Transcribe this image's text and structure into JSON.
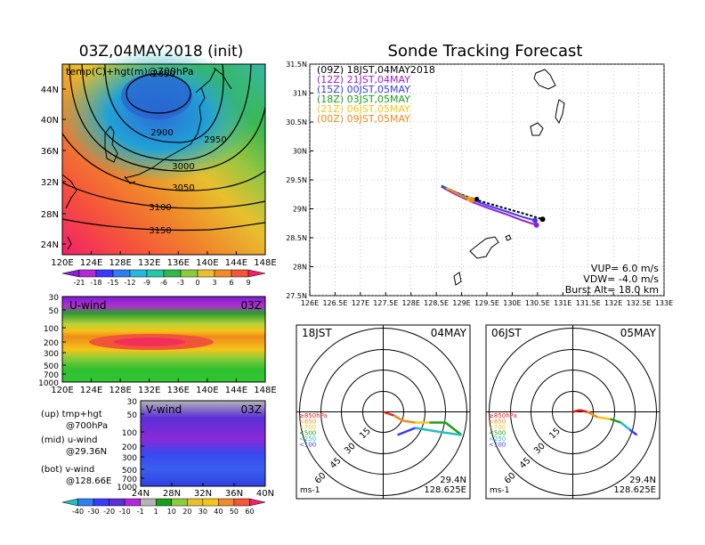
{
  "title": "Sonde Tracking Forecast",
  "init": {
    "title": "03Z,04MAY2018 (init)",
    "overlay": "temp(C)+hgt(m)@700hPa",
    "lat_ticks": [
      "44N",
      "40N",
      "36N",
      "32N",
      "28N",
      "24N"
    ],
    "lon_ticks": [
      "120E",
      "124E",
      "128E",
      "132E",
      "136E",
      "140E",
      "144E",
      "148E"
    ],
    "contours": [
      "2850",
      "2900",
      "2950",
      "3000",
      "3050",
      "3100",
      "3150"
    ],
    "colorbar": [
      "-21",
      "-18",
      "-15",
      "-12",
      "-9",
      "-6",
      "-3",
      "0",
      "3",
      "6",
      "9"
    ]
  },
  "uwind": {
    "title": "U-wind",
    "time": "03Z",
    "levels": [
      "30",
      "50",
      "100",
      "200",
      "300",
      "500",
      "700",
      "1000"
    ],
    "lon_ticks": [
      "120E",
      "124E",
      "128E",
      "132E",
      "136E",
      "140E",
      "144E",
      "148E"
    ]
  },
  "vwind": {
    "title": "V-wind",
    "time": "03Z",
    "levels": [
      "30",
      "50",
      "100",
      "200",
      "300",
      "500",
      "700",
      "1000"
    ],
    "lat_ticks": [
      "24N",
      "28N",
      "32N",
      "36N",
      "40N"
    ]
  },
  "legend_notes": [
    {
      "a": "(up) tmp+hgt",
      "b": "@700hPa"
    },
    {
      "a": "(mid) u-wind",
      "b": "@29.36N"
    },
    {
      "a": "(bot) v-wind",
      "b": "@128.66E"
    }
  ],
  "wind_colorbar": [
    "-40",
    "-30",
    "-20",
    "-10",
    "-1",
    "1",
    "10",
    "20",
    "30",
    "40",
    "50",
    "60"
  ],
  "track_legend": [
    {
      "label": "(09Z)  18JST,04MAY2018",
      "color": "#000000"
    },
    {
      "label": "(12Z)  21JST,04MAY",
      "color": "#9b1fd2"
    },
    {
      "label": "(15Z)  00JST,05MAY",
      "color": "#3a38ff"
    },
    {
      "label": "(18Z)  03JST,05MAY",
      "color": "#1a9e1a"
    },
    {
      "label": "(21Z)  06JST,05MAY",
      "color": "#f5c518"
    },
    {
      "label": "(00Z)  09JST,05MAY",
      "color": "#f08a1c"
    }
  ],
  "params": {
    "vup": "VUP=  6.0  m/s",
    "vdw": "VDW=  -4.0  m/s",
    "burst": "Burst Alt=  18.0  km"
  },
  "hodo": [
    {
      "left": "18JST",
      "right": "04MAY",
      "lat": "29.4N",
      "lon": "128.625E",
      "units": "ms-1"
    },
    {
      "left": "06JST",
      "right": "05MAY",
      "lat": "29.4N",
      "lon": "128.625E",
      "units": "ms-1"
    }
  ],
  "hodo_rings": [
    "15",
    "30",
    "45",
    "60"
  ],
  "pressure_legend": [
    {
      "label": "≥850hPa",
      "color": "#e02020"
    },
    {
      "label": "<850",
      "color": "#f08a1c"
    },
    {
      "label": "<700",
      "color": "#f5c518"
    },
    {
      "label": "<500",
      "color": "#1a9e1a"
    },
    {
      "label": "<250",
      "color": "#20c0c0"
    },
    {
      "label": "<100",
      "color": "#3a38ff"
    }
  ],
  "chart_data": {
    "type": "line",
    "xlabel": "",
    "ylabel": "",
    "xlim": [
      126,
      133
    ],
    "ylim": [
      27.5,
      31.5
    ],
    "x_ticks": [
      "126E",
      "126.5E",
      "127E",
      "127.5E",
      "128E",
      "128.5E",
      "129E",
      "129.5E",
      "130E",
      "130.5E",
      "131E",
      "131.5E",
      "132E",
      "132.5E",
      "133E"
    ],
    "y_ticks": [
      "27.5N",
      "28N",
      "28.5N",
      "29N",
      "29.5N",
      "30N",
      "30.5N",
      "31N",
      "31.5N"
    ],
    "series": [
      {
        "name": "(09Z)  18JST,04MAY2018",
        "color": "#000000",
        "dashed": true,
        "x": [
          128.6,
          128.9,
          129.2,
          129.5,
          129.9,
          130.3,
          130.6
        ],
        "y": [
          29.4,
          29.28,
          29.18,
          29.1,
          29.0,
          28.9,
          28.82
        ]
      },
      {
        "name": "(12Z)  21JST,04MAY",
        "color": "#9b1fd2",
        "dashed": false,
        "x": [
          128.6,
          128.9,
          129.2,
          129.5,
          129.9,
          130.2,
          130.48
        ],
        "y": [
          29.38,
          29.24,
          29.12,
          29.02,
          28.9,
          28.8,
          28.72
        ]
      },
      {
        "name": "(15Z)  00JST,05MAY",
        "color": "#3a38ff",
        "dashed": false,
        "x": [
          128.6,
          128.9,
          129.2,
          129.5,
          129.9,
          130.2,
          130.45
        ],
        "y": [
          29.4,
          29.28,
          29.16,
          29.06,
          28.95,
          28.86,
          28.8
        ]
      },
      {
        "name": "(18Z)  03JST,05MAY",
        "color": "#1a9e1a",
        "dashed": false,
        "x": [
          128.65,
          128.95,
          129.2
        ],
        "y": [
          29.38,
          29.25,
          29.16
        ]
      },
      {
        "name": "(21Z)  06JST,05MAY",
        "color": "#f5c518",
        "dashed": false,
        "x": [
          128.7,
          128.95,
          129.15
        ],
        "y": [
          29.36,
          29.24,
          29.17
        ]
      },
      {
        "name": "(00Z)  09JST,05MAY",
        "color": "#f08a1c",
        "dashed": false,
        "x": [
          128.75,
          129.0,
          129.2
        ],
        "y": [
          29.34,
          29.22,
          29.15
        ]
      }
    ]
  }
}
